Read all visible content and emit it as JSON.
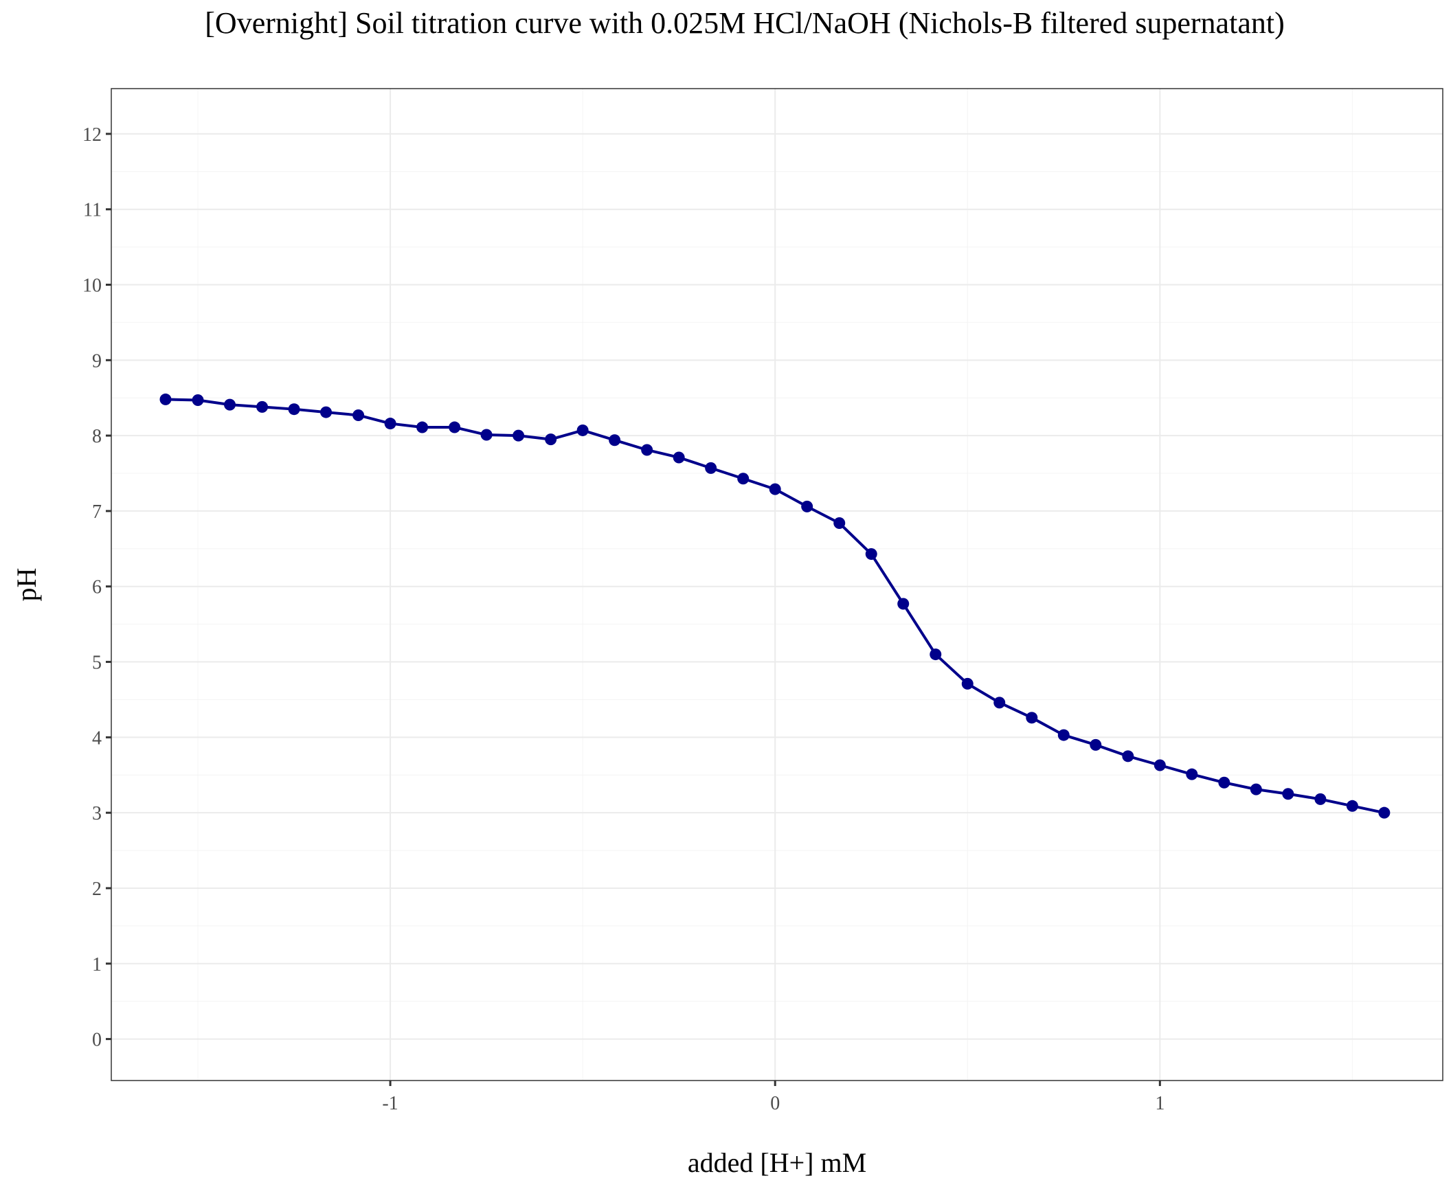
{
  "chart_data": {
    "type": "line",
    "title": "[Overnight] Soil titration curve with 0.025M HCl/NaOH (Nichols-B filtered supernatant)",
    "xlabel": "added [H+] mM",
    "ylabel": "pH",
    "xlim": [
      -1.725,
      1.735
    ],
    "ylim": [
      -0.55,
      12.6
    ],
    "x_ticks": [
      -1,
      0,
      1
    ],
    "x_tick_labels": [
      "-1",
      "0",
      "1"
    ],
    "y_ticks": [
      0,
      1,
      2,
      3,
      4,
      5,
      6,
      7,
      8,
      9,
      10,
      11,
      12
    ],
    "y_tick_labels": [
      "0",
      "1",
      "2",
      "3",
      "4",
      "5",
      "6",
      "7",
      "8",
      "9",
      "10",
      "11",
      "12"
    ],
    "grid": true,
    "series": [
      {
        "color": "#00008b",
        "x": [
          -1.584,
          -1.5,
          -1.417,
          -1.333,
          -1.25,
          -1.167,
          -1.083,
          -1.0,
          -0.917,
          -0.833,
          -0.75,
          -0.667,
          -0.583,
          -0.5,
          -0.417,
          -0.333,
          -0.25,
          -0.167,
          -0.083,
          0.0,
          0.083,
          0.167,
          0.25,
          0.333,
          0.417,
          0.5,
          0.583,
          0.667,
          0.75,
          0.833,
          0.917,
          1.0,
          1.083,
          1.167,
          1.25,
          1.333,
          1.417,
          1.5,
          1.583
        ],
        "y": [
          8.48,
          8.47,
          8.41,
          8.38,
          8.35,
          8.31,
          8.27,
          8.16,
          8.11,
          8.11,
          8.01,
          8.0,
          7.95,
          8.07,
          7.94,
          7.81,
          7.71,
          7.57,
          7.43,
          7.29,
          7.06,
          6.84,
          6.43,
          5.77,
          5.1,
          4.71,
          4.46,
          4.26,
          4.03,
          3.9,
          3.75,
          3.63,
          3.51,
          3.4,
          3.31,
          3.25,
          3.18,
          3.09,
          3.0
        ]
      }
    ]
  }
}
